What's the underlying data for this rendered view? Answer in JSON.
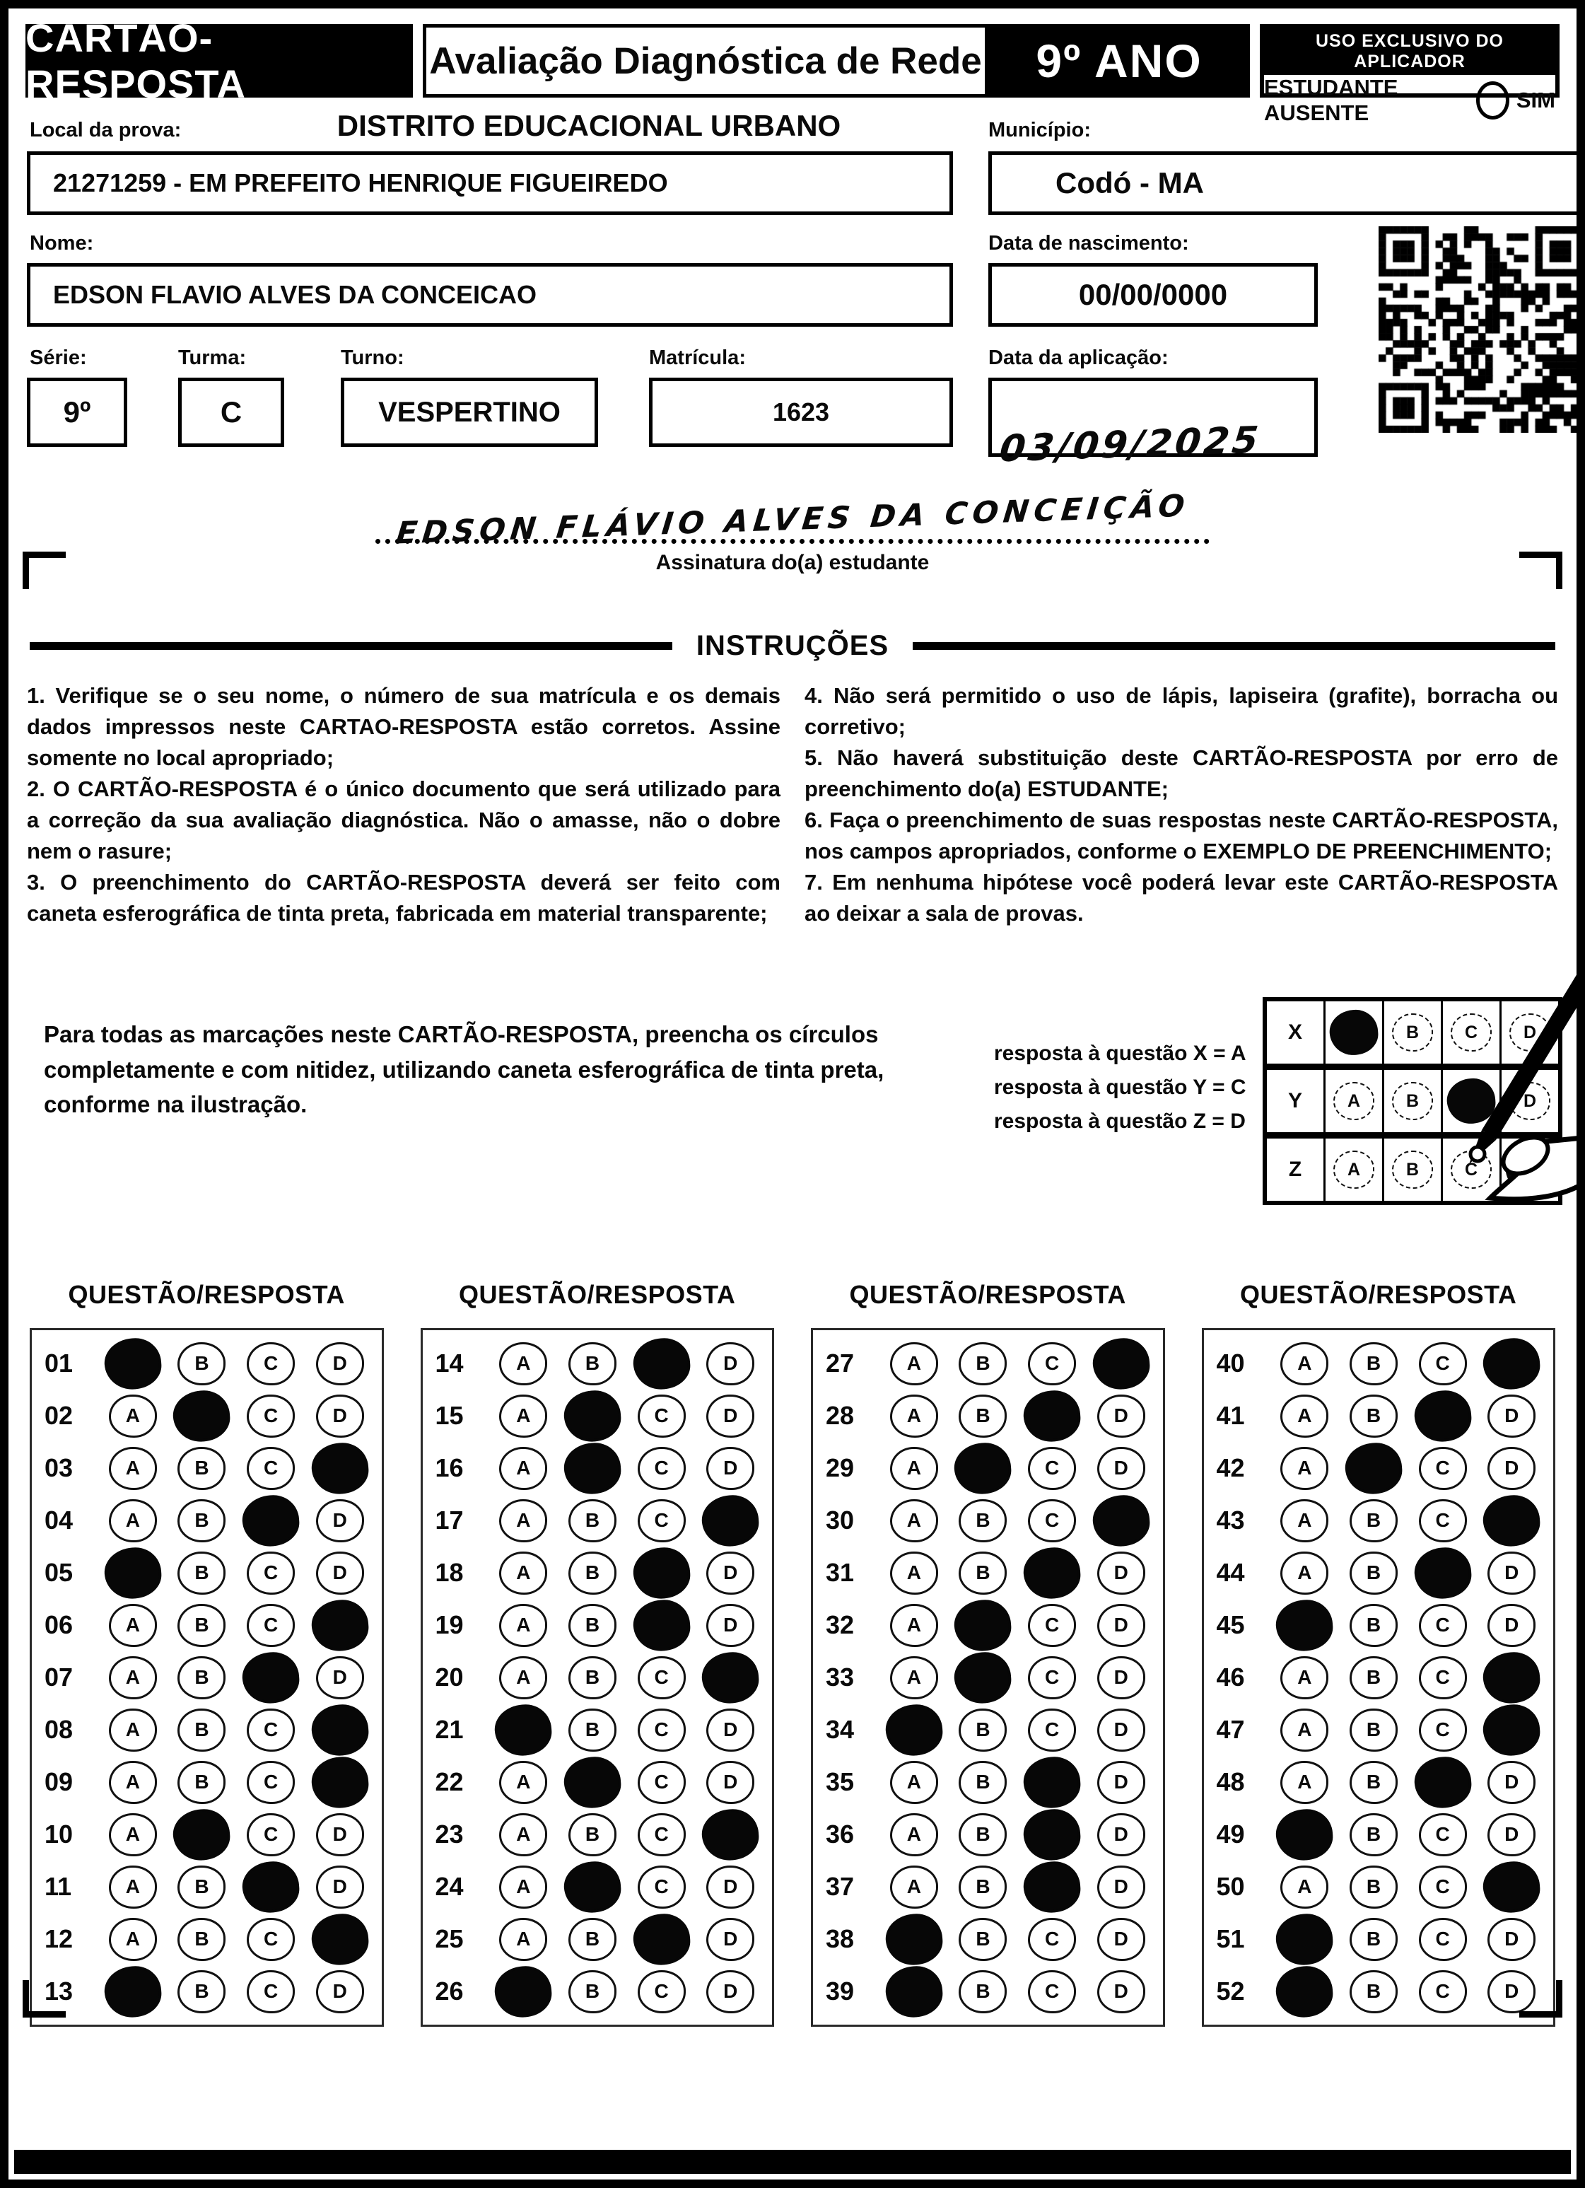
{
  "header": {
    "title": "CARTÃO-RESPOSTA",
    "subtitle": "Avaliação Diagnóstica de Rede",
    "grade": "9º ANO",
    "aplicador_box": {
      "title": "USO EXCLUSIVO DO APLICADOR",
      "absent_label": "ESTUDANTE AUSENTE",
      "absent_option": "SIM"
    }
  },
  "fields": {
    "local_label": "Local da prova:",
    "district": "DISTRITO EDUCACIONAL URBANO",
    "school": "21271259 - EM PREFEITO HENRIQUE FIGUEIREDO",
    "municipio_label": "Município:",
    "municipio": "Codó - MA",
    "nome_label": "Nome:",
    "nome": "EDSON FLAVIO ALVES DA CONCEICAO",
    "nascimento_label": "Data de nascimento:",
    "nascimento": "00/00/0000",
    "serie_label": "Série:",
    "serie": "9º",
    "turma_label": "Turma:",
    "turma": "C",
    "turno_label": "Turno:",
    "turno": "VESPERTINO",
    "matricula_label": "Matrícula:",
    "matricula": "1623",
    "aplicacao_label": "Data da aplicação:",
    "aplicacao_handwritten": "03/09/2025"
  },
  "signature": {
    "handwritten": "EDSON FLÁVIO ALVES DA CONCEIÇÃO",
    "caption": "Assinatura do(a) estudante"
  },
  "instructions": {
    "title": "INSTRUÇÕES",
    "left": [
      "1. Verifique se o seu nome, o número de sua matrícula e os demais dados impressos neste CARTAO-RESPOSTA estão corretos. Assine somente no local apropriado;",
      "2. O CARTÃO-RESPOSTA é o único documento que será utilizado para a correção da sua avaliação diagnóstica. Não o amasse, não o dobre nem o rasure;",
      "3. O preenchimento do CARTÃO-RESPOSTA deverá ser feito com caneta esferográfica de tinta preta, fabricada em material transparente;"
    ],
    "right": [
      "4. Não será permitido o uso de lápis, lapiseira (grafite), borracha ou corretivo;",
      "5. Não haverá substituição deste CARTÃO-RESPOSTA por erro de preenchimento do(a) ESTUDANTE;",
      "6. Faça o preenchimento de suas respostas neste CARTÃO-RESPOSTA, nos campos apropriados, conforme o EXEMPLO DE PREENCHIMENTO;",
      "7. Em nenhuma hipótese você poderá levar este CARTÃO-RESPOSTA ao deixar a sala de provas."
    ]
  },
  "example": {
    "text": "Para todas as marcações neste CARTÃO-RESPOSTA, preencha os círculos completamente e com nitidez, utilizando caneta esferográfica de tinta preta, conforme na ilustração.",
    "legend": [
      "resposta à questão X = A",
      "resposta à questão Y = C",
      "resposta à questão Z = D"
    ],
    "options": [
      "A",
      "B",
      "C",
      "D"
    ],
    "rows": [
      {
        "label": "X",
        "marked": "A"
      },
      {
        "label": "Y",
        "marked": "C"
      },
      {
        "label": "Z",
        "marked": "D"
      }
    ]
  },
  "answer_sheet": {
    "column_header": "QUESTÃO/RESPOSTA",
    "options": [
      "A",
      "B",
      "C",
      "D"
    ],
    "columns": [
      {
        "questions": [
          {
            "n": "01",
            "marked": "A"
          },
          {
            "n": "02",
            "marked": "B"
          },
          {
            "n": "03",
            "marked": "D"
          },
          {
            "n": "04",
            "marked": "C"
          },
          {
            "n": "05",
            "marked": "A"
          },
          {
            "n": "06",
            "marked": "D"
          },
          {
            "n": "07",
            "marked": "C"
          },
          {
            "n": "08",
            "marked": "D"
          },
          {
            "n": "09",
            "marked": "D"
          },
          {
            "n": "10",
            "marked": "B"
          },
          {
            "n": "11",
            "marked": "C"
          },
          {
            "n": "12",
            "marked": "D"
          },
          {
            "n": "13",
            "marked": "A"
          }
        ]
      },
      {
        "questions": [
          {
            "n": "14",
            "marked": "C"
          },
          {
            "n": "15",
            "marked": "B"
          },
          {
            "n": "16",
            "marked": "B"
          },
          {
            "n": "17",
            "marked": "D"
          },
          {
            "n": "18",
            "marked": "C"
          },
          {
            "n": "19",
            "marked": "C"
          },
          {
            "n": "20",
            "marked": "D"
          },
          {
            "n": "21",
            "marked": "A"
          },
          {
            "n": "22",
            "marked": "B"
          },
          {
            "n": "23",
            "marked": "D"
          },
          {
            "n": "24",
            "marked": "B"
          },
          {
            "n": "25",
            "marked": "C"
          },
          {
            "n": "26",
            "marked": "A"
          }
        ]
      },
      {
        "questions": [
          {
            "n": "27",
            "marked": "D"
          },
          {
            "n": "28",
            "marked": "C"
          },
          {
            "n": "29",
            "marked": "B"
          },
          {
            "n": "30",
            "marked": "D"
          },
          {
            "n": "31",
            "marked": "C"
          },
          {
            "n": "32",
            "marked": "B"
          },
          {
            "n": "33",
            "marked": "B"
          },
          {
            "n": "34",
            "marked": "A"
          },
          {
            "n": "35",
            "marked": "C"
          },
          {
            "n": "36",
            "marked": "C"
          },
          {
            "n": "37",
            "marked": "C"
          },
          {
            "n": "38",
            "marked": "A"
          },
          {
            "n": "39",
            "marked": "A"
          }
        ]
      },
      {
        "questions": [
          {
            "n": "40",
            "marked": "D"
          },
          {
            "n": "41",
            "marked": "C"
          },
          {
            "n": "42",
            "marked": "B"
          },
          {
            "n": "43",
            "marked": "D"
          },
          {
            "n": "44",
            "marked": "C"
          },
          {
            "n": "45",
            "marked": "A"
          },
          {
            "n": "46",
            "marked": "D"
          },
          {
            "n": "47",
            "marked": "D"
          },
          {
            "n": "48",
            "marked": "C"
          },
          {
            "n": "49",
            "marked": "A"
          },
          {
            "n": "50",
            "marked": "D"
          },
          {
            "n": "51",
            "marked": "A"
          },
          {
            "n": "52",
            "marked": "A"
          }
        ]
      }
    ]
  }
}
